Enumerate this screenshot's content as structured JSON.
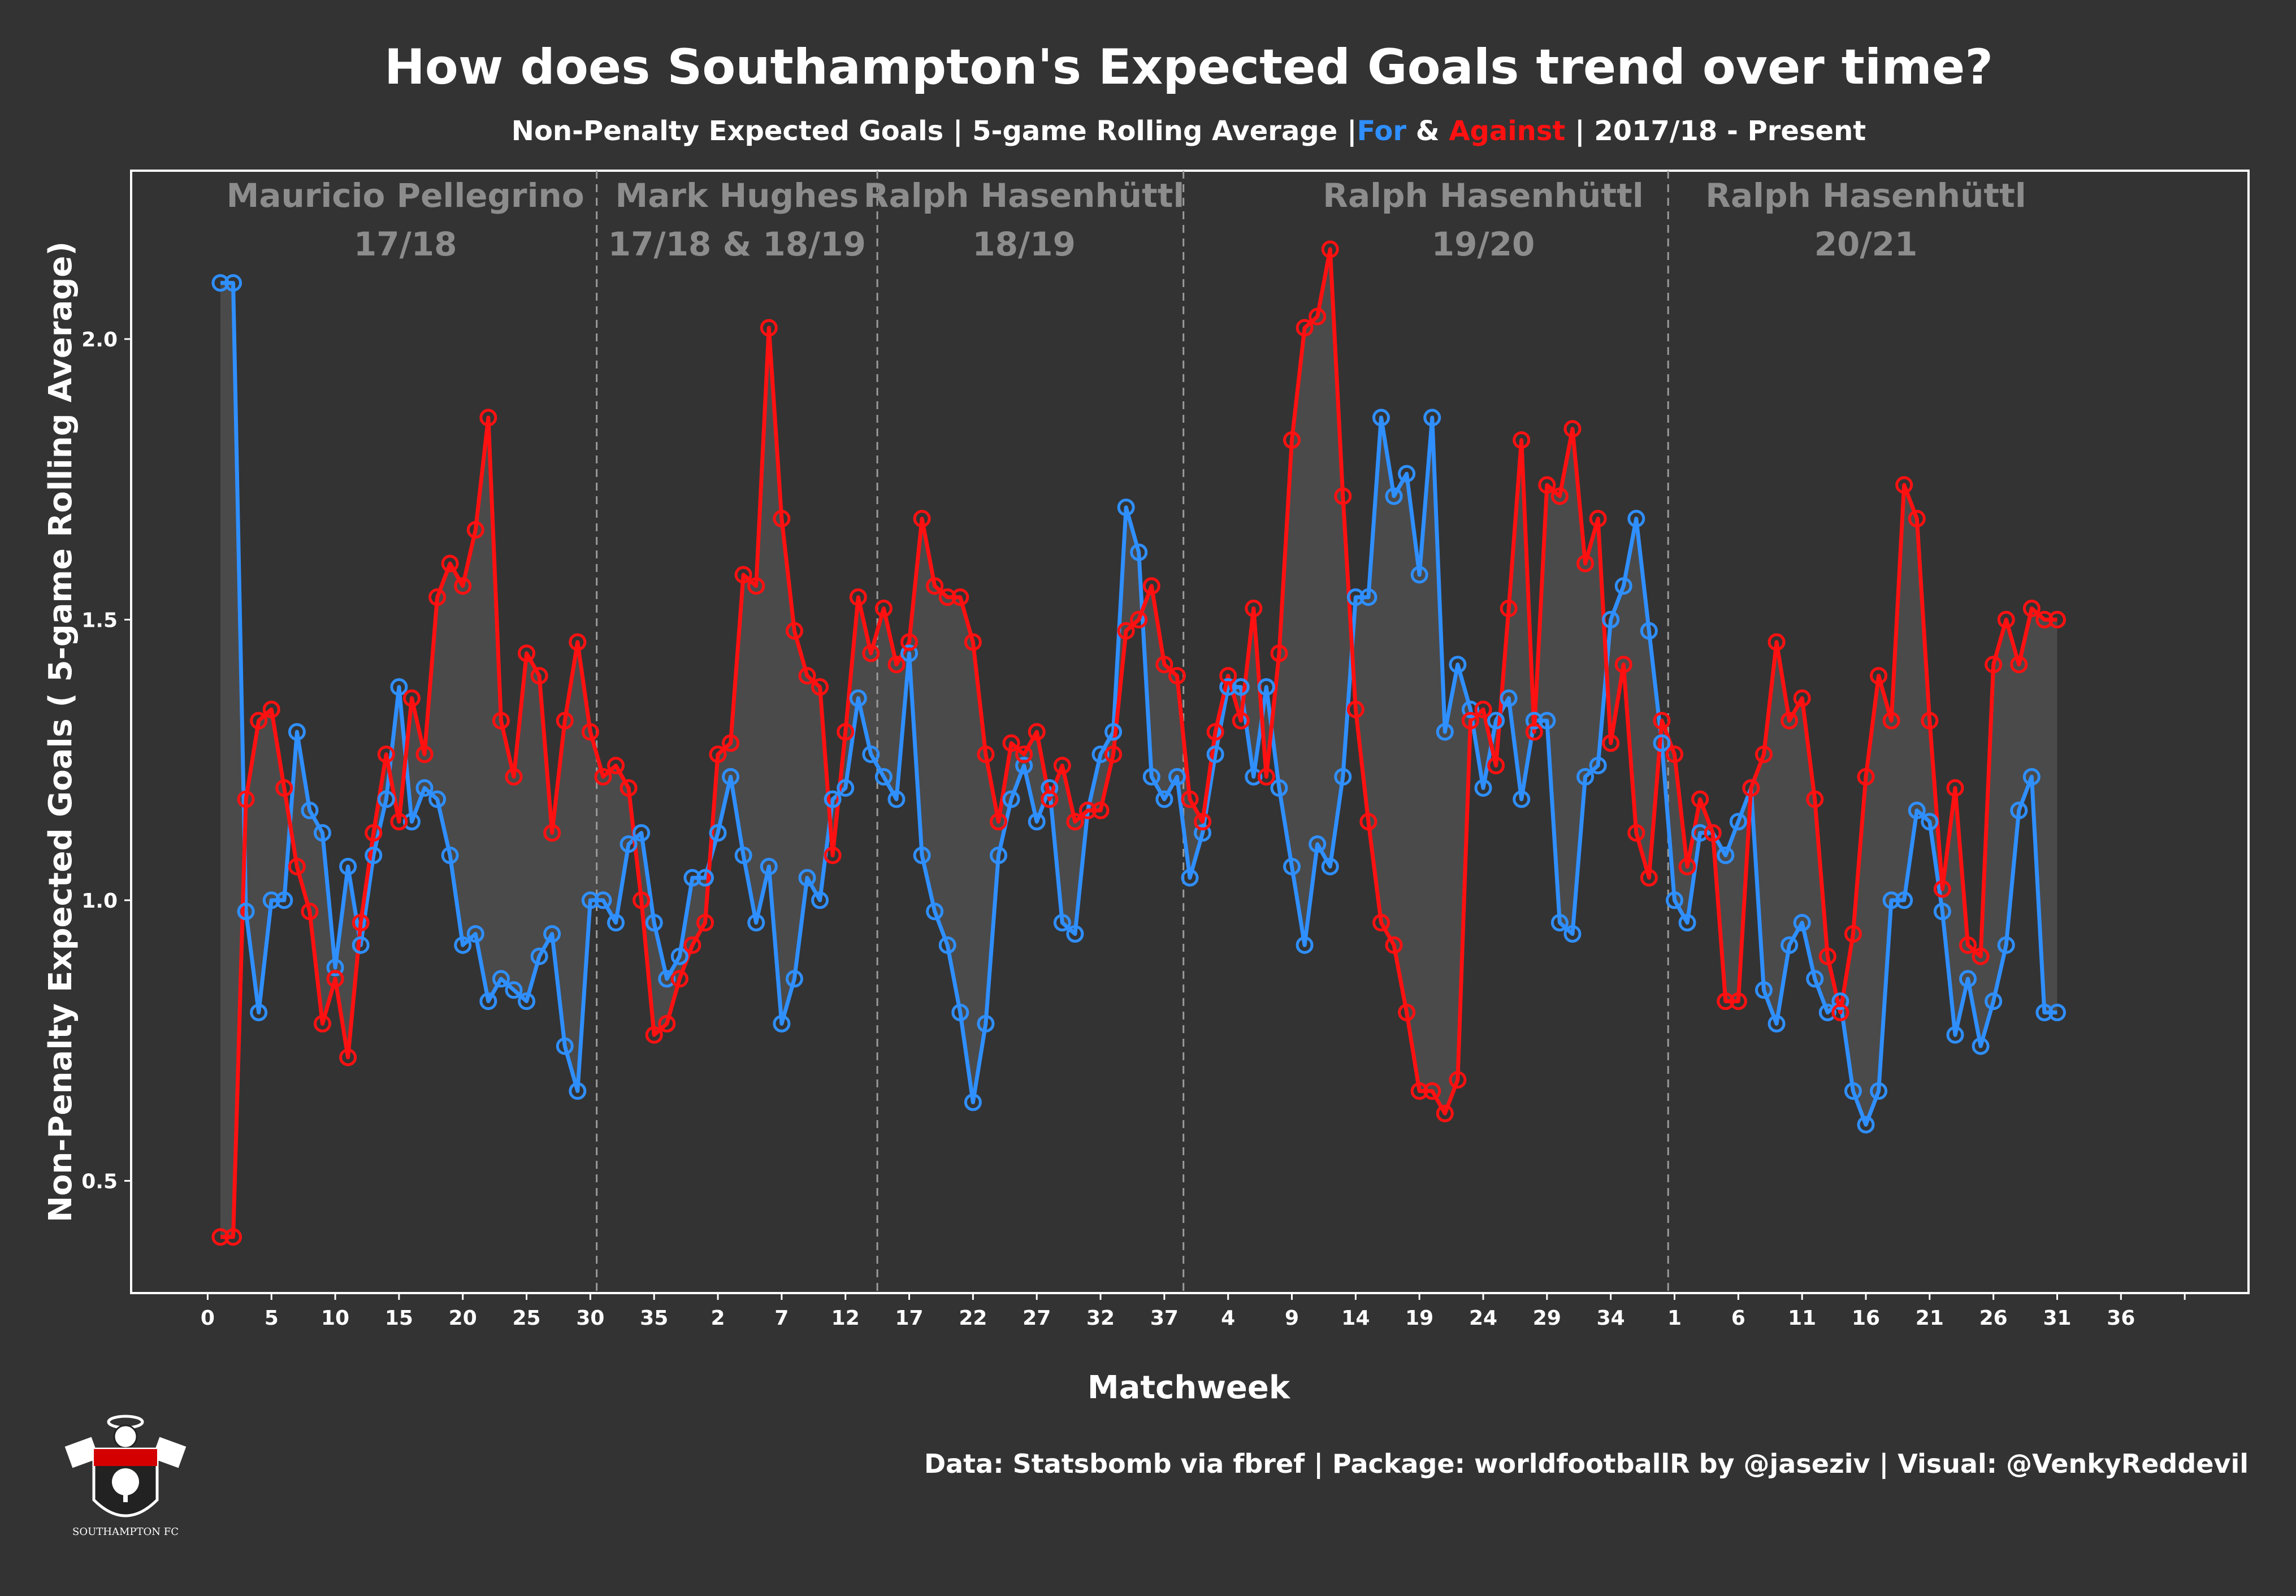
{
  "title": "How does Southampton's Expected Goals trend over time?",
  "subtitle": {
    "part1": "Non-Penalty Expected Goals  |  5-game Rolling Average  |",
    "for_label": "For",
    "amp": " & ",
    "against_label": "Against",
    "part2": "  |  2017/18 - Present"
  },
  "caption": "Data: Statsbomb via fbref  |  Package: worldfootballR by @jaseziv  |  Visual: @VenkyReddevil",
  "logo_text": "SOUTHAMPTON FC",
  "colors": {
    "background": "#333333",
    "panel": "#333333",
    "for": "#2f8fff",
    "against": "#ff1111",
    "ribbon": "#4a4a4a",
    "era_text": "#8c8c8c",
    "separator": "#9a9a9a"
  },
  "chart_data": {
    "type": "line",
    "title": "How does Southampton's Expected Goals trend over time?",
    "xlabel": "Matchweek",
    "ylabel": "Non-Penalty Expected Goals ( 5-game Rolling Average)",
    "ylim": [
      0.3,
      2.3
    ],
    "xlim": [
      -6,
      160
    ],
    "y_ticks": [
      0.5,
      1.0,
      1.5,
      2.0
    ],
    "y_tick_labels": [
      "0.5",
      "1.0",
      "1.5",
      "2.0"
    ],
    "x_ticks": [
      0,
      5,
      10,
      15,
      20,
      25,
      30,
      35,
      40,
      45,
      50,
      55,
      60,
      65,
      70,
      75,
      80,
      85,
      90,
      95,
      100,
      105,
      110,
      115,
      120,
      125,
      130,
      135,
      140,
      145,
      150,
      155
    ],
    "x_tick_labels": [
      "0",
      "5",
      "10",
      "15",
      "20",
      "25",
      "30",
      "35",
      "2",
      "7",
      "12",
      "17",
      "22",
      "27",
      "32",
      "37",
      "4",
      "9",
      "14",
      "19",
      "24",
      "29",
      "34",
      "1",
      "6",
      "11",
      "16",
      "21",
      "26",
      "31",
      "36",
      ""
    ],
    "grid": false,
    "fill_between": true,
    "era_separators": [
      30.5,
      52.5,
      76.5,
      114.5
    ],
    "eras": [
      {
        "name": "Mauricio Pellegrino",
        "season": "17/18",
        "x": 15.5
      },
      {
        "name": "Mark Hughes",
        "season": "17/18 & 18/19",
        "x": 41.5
      },
      {
        "name": "Ralph Hasenhüttl",
        "season": "18/19",
        "x": 64
      },
      {
        "name": "Ralph Hasenhüttl",
        "season": "19/20",
        "x": 100
      },
      {
        "name": "Ralph Hasenhüttl",
        "season": "20/21",
        "x": 130
      }
    ],
    "series": [
      {
        "name": "For",
        "color": "#2f8fff",
        "values": [
          2.1,
          2.1,
          0.98,
          0.8,
          1.0,
          1.0,
          1.3,
          1.16,
          1.12,
          0.88,
          1.06,
          0.92,
          1.08,
          1.18,
          1.38,
          1.14,
          1.2,
          1.18,
          1.08,
          0.92,
          0.94,
          0.82,
          0.86,
          0.84,
          0.82,
          0.9,
          0.94,
          0.74,
          0.66,
          1.0,
          1.0,
          0.96,
          1.1,
          1.12,
          0.96,
          0.86,
          0.9,
          1.04,
          1.04,
          1.12,
          1.22,
          1.08,
          0.96,
          1.06,
          0.78,
          0.86,
          1.04,
          1.0,
          1.18,
          1.2,
          1.36,
          1.26,
          1.22,
          1.18,
          1.44,
          1.08,
          0.98,
          0.92,
          0.8,
          0.64,
          0.78,
          1.08,
          1.18,
          1.24,
          1.14,
          1.2,
          0.96,
          0.94,
          1.16,
          1.26,
          1.3,
          1.7,
          1.62,
          1.22,
          1.18,
          1.22,
          1.04,
          1.12,
          1.26,
          1.38,
          1.38,
          1.22,
          1.38,
          1.2,
          1.06,
          0.92,
          1.1,
          1.06,
          1.22,
          1.54,
          1.54,
          1.86,
          1.72,
          1.76,
          1.58,
          1.86,
          1.3,
          1.42,
          1.34,
          1.2,
          1.32,
          1.36,
          1.18,
          1.32,
          1.32,
          0.96,
          0.94,
          1.22,
          1.24,
          1.5,
          1.56,
          1.68,
          1.48,
          1.28,
          1.0,
          0.96,
          1.12,
          1.12,
          1.08,
          1.14,
          1.2,
          0.84,
          0.78,
          0.92,
          0.96,
          0.86,
          0.8,
          0.82,
          0.66,
          0.6,
          0.66,
          1.0,
          1.0,
          1.16,
          1.14,
          0.98,
          0.76,
          0.86,
          0.74,
          0.82,
          0.92,
          1.16,
          1.22,
          0.8,
          0.8
        ]
      },
      {
        "name": "Against",
        "color": "#ff1111",
        "values": [
          0.4,
          0.4,
          1.18,
          1.32,
          1.34,
          1.2,
          1.06,
          0.98,
          0.78,
          0.86,
          0.72,
          0.96,
          1.12,
          1.26,
          1.14,
          1.36,
          1.26,
          1.54,
          1.6,
          1.56,
          1.66,
          1.86,
          1.32,
          1.22,
          1.44,
          1.4,
          1.12,
          1.32,
          1.46,
          1.3,
          1.22,
          1.24,
          1.2,
          1.0,
          0.76,
          0.78,
          0.86,
          0.92,
          0.96,
          1.26,
          1.28,
          1.58,
          1.56,
          2.02,
          1.68,
          1.48,
          1.4,
          1.38,
          1.08,
          1.3,
          1.54,
          1.44,
          1.52,
          1.42,
          1.46,
          1.68,
          1.56,
          1.54,
          1.54,
          1.46,
          1.26,
          1.14,
          1.28,
          1.26,
          1.3,
          1.18,
          1.24,
          1.14,
          1.16,
          1.16,
          1.26,
          1.48,
          1.5,
          1.56,
          1.42,
          1.4,
          1.18,
          1.14,
          1.3,
          1.4,
          1.32,
          1.52,
          1.22,
          1.44,
          1.82,
          2.02,
          2.04,
          2.16,
          1.72,
          1.34,
          1.14,
          0.96,
          0.92,
          0.8,
          0.66,
          0.66,
          0.62,
          0.68,
          1.32,
          1.34,
          1.24,
          1.52,
          1.82,
          1.3,
          1.74,
          1.72,
          1.84,
          1.6,
          1.68,
          1.28,
          1.42,
          1.12,
          1.04,
          1.32,
          1.26,
          1.06,
          1.18,
          1.12,
          0.82,
          0.82,
          1.2,
          1.26,
          1.46,
          1.32,
          1.36,
          1.18,
          0.9,
          0.8,
          0.94,
          1.22,
          1.4,
          1.32,
          1.74,
          1.68,
          1.32,
          1.02,
          1.2,
          0.92,
          0.9,
          1.42,
          1.5,
          1.42,
          1.52,
          1.5,
          1.5
        ]
      }
    ]
  }
}
